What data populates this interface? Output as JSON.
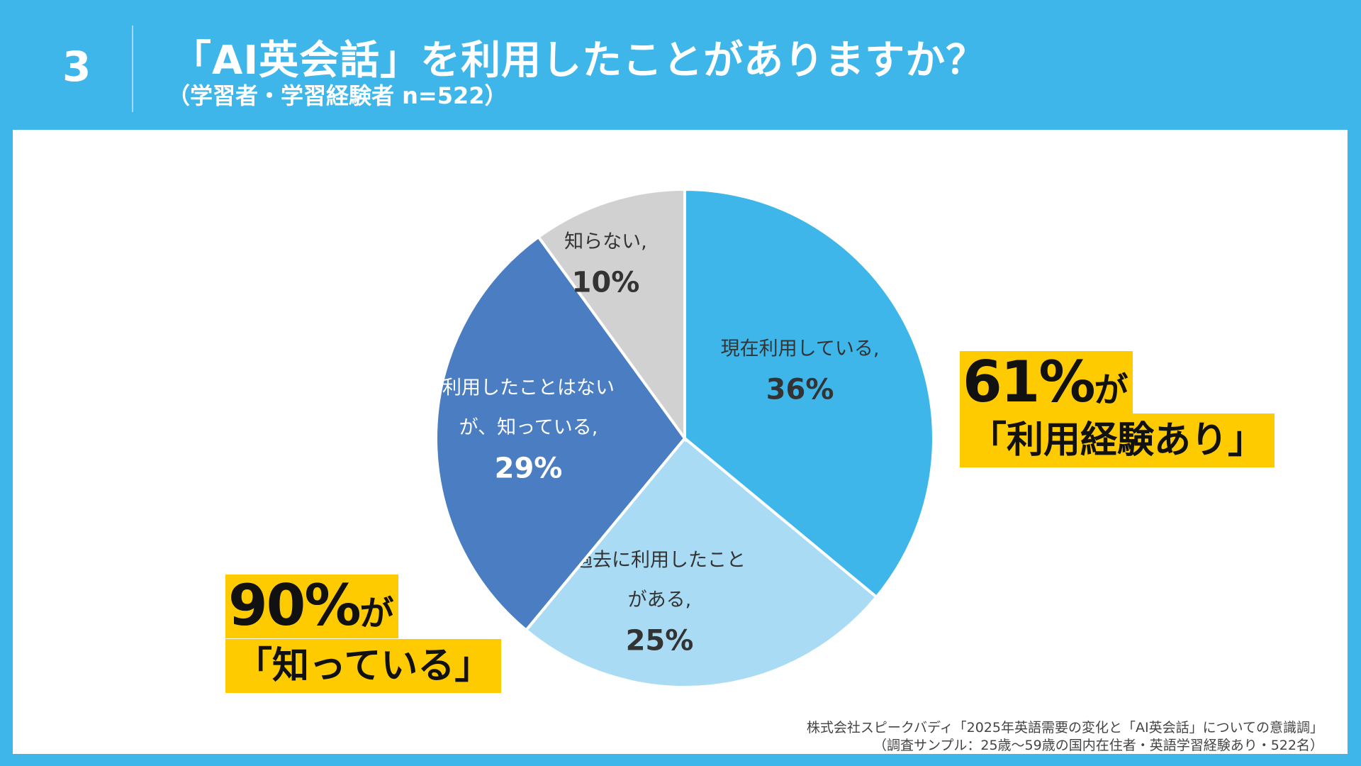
{
  "header": {
    "number": "3",
    "title": "「AI英会話」を利用したことがありますか？",
    "subtitle": "（学習者・学習経験者 n=522）"
  },
  "chart_data": {
    "type": "pie",
    "slices": [
      {
        "label_lines": [
          "現在利用している,"
        ],
        "percent_label": "36%",
        "value": 36,
        "color": "#3fb6ea",
        "text_color": "#333333"
      },
      {
        "label_lines": [
          "過去に利用したこと",
          "がある,"
        ],
        "percent_label": "25%",
        "value": 25,
        "color": "#a9dcf4",
        "text_color": "#333333"
      },
      {
        "label_lines": [
          "利用したことはない",
          "が、知っている,"
        ],
        "percent_label": "29%",
        "value": 29,
        "color": "#4a7dc1",
        "text_color": "#ffffff"
      },
      {
        "label_lines": [
          "知らない,"
        ],
        "percent_label": "10%",
        "value": 10,
        "color": "#d1d1d1",
        "text_color": "#333333"
      }
    ]
  },
  "callouts": {
    "used": {
      "big": "61%",
      "suffix": "が",
      "line2": "「利用経験あり」"
    },
    "known": {
      "big": "90%",
      "suffix": "が",
      "line2": "「知っている」"
    }
  },
  "source": {
    "line1": "株式会社スピークバディ「2025年英語需要の変化と「AI英会話」についての意識調」",
    "line2": "（調査サンプル：25歳〜59歳の国内在住者・英語学習経験あり・522名）"
  },
  "colors": {
    "background": "#3fb6ea",
    "highlight": "#fdcb00"
  }
}
